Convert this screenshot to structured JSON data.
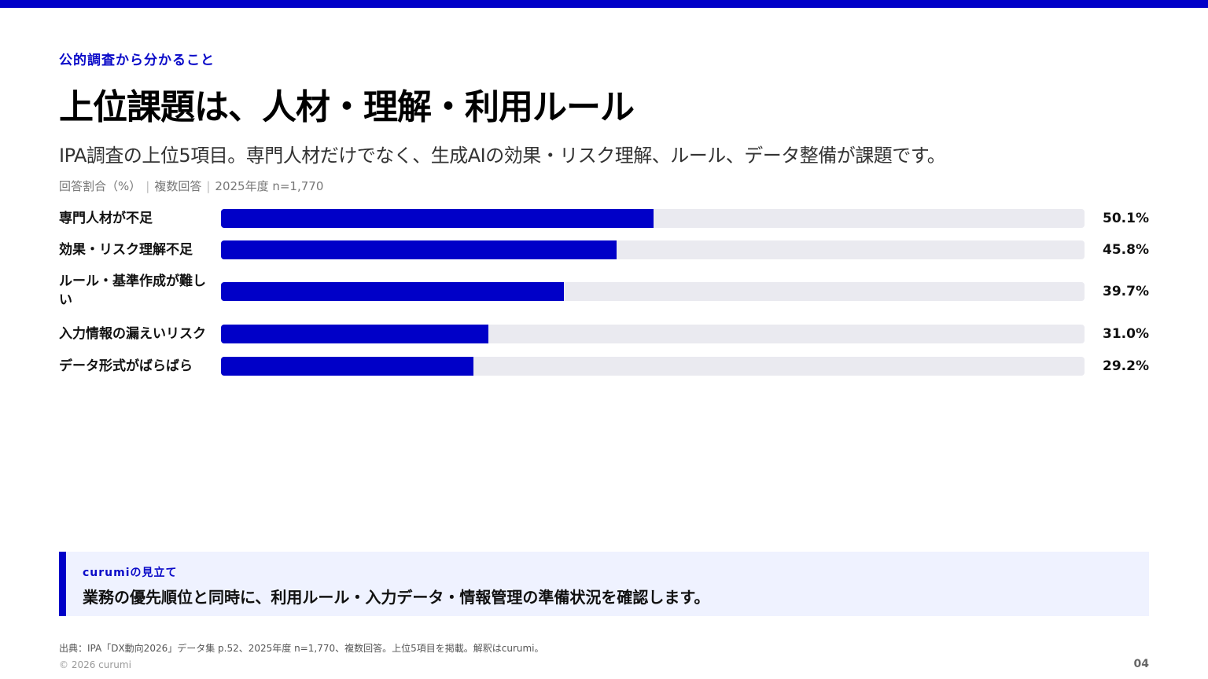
{
  "header": {
    "eyebrow": "公的調査から分かること",
    "title": "上位課題は、人材・理解・利用ルール",
    "subtitle": "IPA調査の上位5項目。専門人材だけでなく、生成AIの効果・リスク理解、ルール、データ整備が課題です。",
    "meta": [
      "回答割合（%）",
      "複数回答",
      "2025年度 n=1,770"
    ]
  },
  "colors": {
    "accent": "#0000c8",
    "track": "#eaeaf0",
    "callout_bg": "#eff2ff"
  },
  "chart_data": {
    "type": "bar",
    "orientation": "horizontal",
    "categories": [
      "専門人材が不足",
      "効果・リスク理解不足",
      "ルール・基準作成が難しい",
      "入力情報の漏えいリスク",
      "データ形式がばらばら"
    ],
    "values": [
      50.1,
      45.8,
      39.7,
      31.0,
      29.2
    ],
    "value_labels": [
      "50.1%",
      "45.8%",
      "39.7%",
      "31.0%",
      "29.2%"
    ],
    "xlim": [
      0,
      100
    ],
    "grid": false,
    "legend": "none"
  },
  "callout": {
    "tag": "curumiの見立て",
    "text": "業務の優先順位と同時に、利用ルール・入力データ・情報管理の準備状況を確認します。"
  },
  "footer": {
    "source": "出典：IPA「DX動向2026」データ集 p.52、2025年度 n=1,770、複数回答。上位5項目を掲載。解釈はcurumi。",
    "copyright": "© 2026 curumi",
    "page": "04"
  }
}
